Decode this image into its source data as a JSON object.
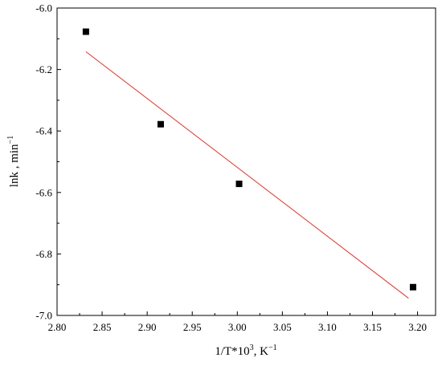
{
  "chart_data": {
    "type": "scatter",
    "title": "",
    "xlabel": "1/T*10",
    "xlabel_sup": "3",
    "xlabel_unit": ", K",
    "xlabel_unit_sup": "−1",
    "ylabel": "lnk , min",
    "ylabel_sup": "−1",
    "xlim": [
      2.8,
      3.22
    ],
    "ylim": [
      -7.0,
      -6.0
    ],
    "x_ticks": [
      2.8,
      2.85,
      2.9,
      2.95,
      3.0,
      3.05,
      3.1,
      3.15,
      3.2
    ],
    "x_tick_labels": [
      "2.80",
      "2.85",
      "2.90",
      "2.95",
      "3.00",
      "3.05",
      "3.10",
      "3.15",
      "3.20"
    ],
    "y_ticks": [
      -7.0,
      -6.8,
      -6.6,
      -6.4,
      -6.2,
      -6.0
    ],
    "y_tick_labels": [
      "-7.0",
      "-6.8",
      "-6.6",
      "-6.4",
      "-6.2",
      "-6.0"
    ],
    "grid": false,
    "series": [
      {
        "kind": "scatter",
        "marker": "square",
        "color": "#000000",
        "x": [
          2.832,
          2.915,
          3.002,
          3.195
        ],
        "y": [
          -6.077,
          -6.378,
          -6.572,
          -6.908
        ]
      },
      {
        "kind": "line",
        "color": "#e0342a",
        "x": [
          2.832,
          3.19
        ],
        "y": [
          -6.142,
          -6.944
        ]
      }
    ]
  }
}
